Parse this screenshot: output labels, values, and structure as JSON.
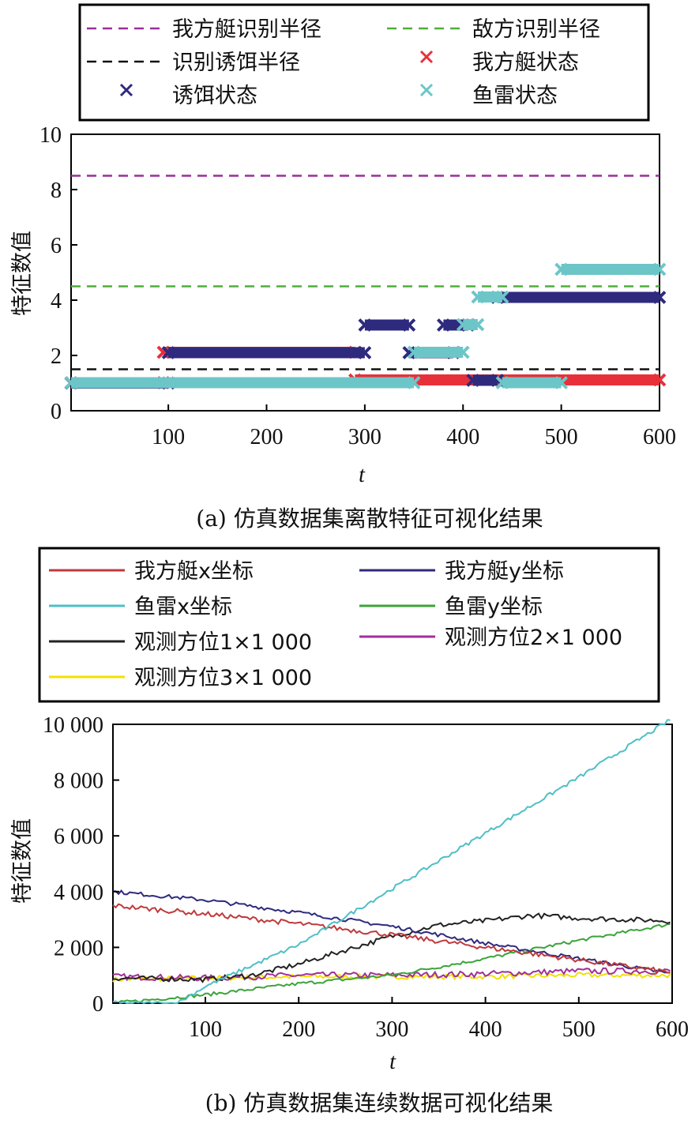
{
  "chart_data": [
    {
      "type": "scatter",
      "title": "(a) 仿真数据集离散特征可视化结果",
      "xlabel": "t",
      "ylabel": "特征数值",
      "xlim": [
        1,
        600
      ],
      "ylim": [
        0,
        10
      ],
      "xticks": [
        "100",
        "200",
        "300",
        "400",
        "500",
        "600"
      ],
      "yticks": [
        "0",
        "2",
        "4",
        "6",
        "8",
        "10"
      ],
      "legend": [
        {
          "label": "我方艇识别半径",
          "color": "#9a2f9a",
          "style": "dashed"
        },
        {
          "label": "敌方识别半径",
          "color": "#4fae3a",
          "style": "dashed"
        },
        {
          "label": "识别诱饵半径",
          "color": "#111111",
          "style": "dashed"
        },
        {
          "label": "我方艇状态",
          "color": "#e8303a",
          "style": "x-marker"
        },
        {
          "label": "诱饵状态",
          "color": "#2e2a7e",
          "style": "x-marker"
        },
        {
          "label": "鱼雷状态",
          "color": "#6cc6c8",
          "style": "x-marker"
        }
      ],
      "hlines": [
        {
          "name": "我方艇识别半径",
          "y": 8.5
        },
        {
          "name": "敌方识别半径",
          "y": 4.5
        },
        {
          "name": "识别诱饵半径",
          "y": 1.5
        }
      ],
      "series": [
        {
          "name": "我方艇状态",
          "segments": [
            {
              "x": [
                1,
                95
              ],
              "y": 0.9
            },
            {
              "x": [
                95,
                290
              ],
              "y": 2.0
            },
            {
              "x": [
                290,
                600
              ],
              "y": 1.0
            }
          ]
        },
        {
          "name": "诱饵状态",
          "segments": [
            {
              "x": [
                1,
                100
              ],
              "y": 1.0
            },
            {
              "x": [
                100,
                300
              ],
              "y": 2.1
            },
            {
              "x": [
                300,
                345
              ],
              "y": 3.1
            },
            {
              "x": [
                345,
                390
              ],
              "y": 2.1
            },
            {
              "x": [
                380,
                405
              ],
              "y": 3.1
            },
            {
              "x": [
                410,
                435
              ],
              "y": 1.1
            },
            {
              "x": [
                435,
                600
              ],
              "y": 4.1
            }
          ]
        },
        {
          "name": "鱼雷状态",
          "segments": [
            {
              "x": [
                1,
                350
              ],
              "y": 1.1
            },
            {
              "x": [
                350,
                400
              ],
              "y": 2.2
            },
            {
              "x": [
                400,
                415
              ],
              "y": 3.2
            },
            {
              "x": [
                415,
                440
              ],
              "y": 4.2
            },
            {
              "x": [
                440,
                500
              ],
              "y": 1.1
            },
            {
              "x": [
                500,
                600
              ],
              "y": 5.2
            }
          ]
        }
      ]
    },
    {
      "type": "line",
      "title": "(b) 仿真数据集连续数据可视化结果",
      "xlabel": "t",
      "ylabel": "特征数值",
      "xlim": [
        1,
        600
      ],
      "ylim": [
        0,
        10000
      ],
      "xticks": [
        "100",
        "200",
        "300",
        "400",
        "500",
        "600"
      ],
      "yticks": [
        "0",
        "2 000",
        "4 000",
        "6 000",
        "8 000",
        "10 000"
      ],
      "legend": [
        {
          "label": "我方艇x坐标",
          "color": "#c0393b"
        },
        {
          "label": "我方艇y坐标",
          "color": "#2e2a7e"
        },
        {
          "label": "鱼雷x坐标",
          "color": "#4fbfc6"
        },
        {
          "label": "鱼雷y坐标",
          "color": "#3ca33a"
        },
        {
          "label": "观测方位1×1 000",
          "color": "#222222"
        },
        {
          "label": "观测方位2×1 000",
          "color": "#a0309a"
        },
        {
          "label": "观测方位3×1 000",
          "color": "#f2e000"
        }
      ],
      "series": [
        {
          "name": "我方艇x坐标",
          "x": [
            1,
            100,
            200,
            300,
            400,
            500,
            600
          ],
          "values": [
            3500,
            3200,
            2850,
            2450,
            2000,
            1550,
            1100
          ]
        },
        {
          "name": "我方艇y坐标",
          "x": [
            1,
            100,
            200,
            300,
            400,
            500,
            600
          ],
          "values": [
            4000,
            3700,
            3250,
            2750,
            2150,
            1600,
            1050
          ]
        },
        {
          "name": "鱼雷x坐标",
          "x": [
            1,
            70,
            100,
            200,
            300,
            400,
            500,
            600
          ],
          "values": [
            0,
            0,
            600,
            2100,
            4100,
            6100,
            8100,
            10200
          ]
        },
        {
          "name": "鱼雷y坐标",
          "x": [
            1,
            100,
            200,
            300,
            400,
            500,
            600
          ],
          "values": [
            0,
            300,
            700,
            1000,
            1600,
            2250,
            2850
          ]
        },
        {
          "name": "观测方位1×1 000",
          "x": [
            1,
            100,
            150,
            200,
            250,
            300,
            350,
            400,
            450,
            500,
            550,
            600
          ],
          "values": [
            900,
            850,
            1000,
            1400,
            1900,
            2400,
            2800,
            2950,
            3150,
            3050,
            3000,
            2950
          ]
        },
        {
          "name": "观测方位2×1 000",
          "x": [
            1,
            100,
            200,
            300,
            400,
            500,
            600
          ],
          "values": [
            950,
            900,
            1000,
            1000,
            1050,
            1150,
            1150
          ]
        },
        {
          "name": "观测方位3×1 000",
          "x": [
            1,
            100,
            200,
            300,
            400,
            500,
            600
          ],
          "values": [
            850,
            900,
            950,
            950,
            950,
            1000,
            1000
          ]
        }
      ]
    }
  ]
}
